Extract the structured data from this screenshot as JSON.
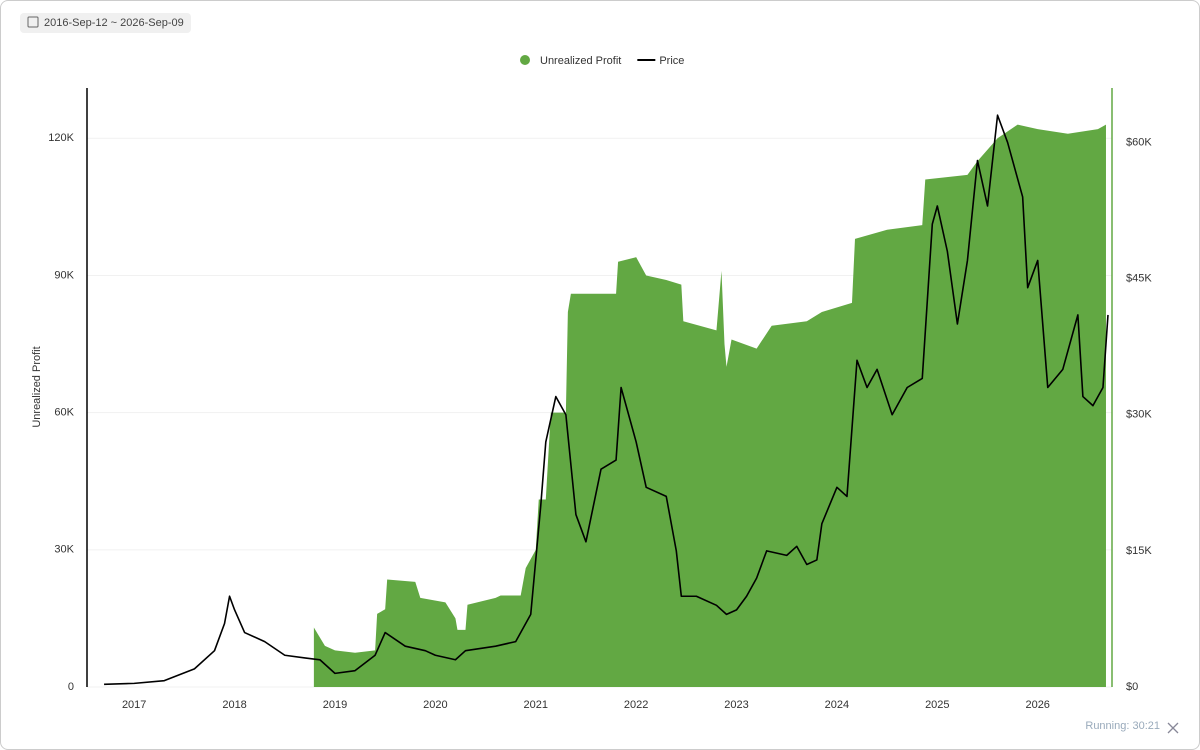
{
  "ui": {
    "date_range": "2016-Sep-12 ~ 2026-Sep-09",
    "status": "Running: 30:21"
  },
  "chart_data": {
    "type": "line",
    "y_label": "Unrealized Profit",
    "legend": "top",
    "grid": true,
    "xlim": [
      2016.53,
      2026.74
    ],
    "xticks": [
      2017,
      2018,
      2019,
      2020,
      2021,
      2022,
      2023,
      2024,
      2025,
      2026
    ],
    "ylim": [
      0,
      131000
    ],
    "yticks": [
      0,
      {
        "value": 30000,
        "label": "30K"
      },
      {
        "value": 60000,
        "label": "60K"
      },
      {
        "value": 90000,
        "label": "90K"
      },
      {
        "value": 120000,
        "label": "120K"
      }
    ],
    "y2lim": [
      0,
      66000
    ],
    "y2ticks": [
      {
        "value": 0,
        "label": "$0"
      },
      {
        "value": 15000,
        "label": "$15K"
      },
      {
        "value": 30000,
        "label": "$30K"
      },
      {
        "value": 45000,
        "label": "$45K"
      },
      {
        "value": 60000,
        "label": "$60K"
      }
    ],
    "series": [
      {
        "name": "Unrealized Profit",
        "type": "area",
        "color": "#62a843",
        "x": [
          2018.79,
          2018.9,
          2019.0,
          2019.2,
          2019.4,
          2019.42,
          2019.5,
          2019.52,
          2019.8,
          2019.85,
          2020.1,
          2020.2,
          2020.22,
          2020.3,
          2020.32,
          2020.6,
          2020.65,
          2020.85,
          2020.9,
          2021.0,
          2021.03,
          2021.1,
          2021.15,
          2021.3,
          2021.32,
          2021.35,
          2021.6,
          2021.8,
          2021.82,
          2022.0,
          2022.1,
          2022.3,
          2022.45,
          2022.47,
          2022.8,
          2022.85,
          2022.88,
          2022.9,
          2022.95,
          2023.2,
          2023.35,
          2023.7,
          2023.85,
          2024.15,
          2024.18,
          2024.5,
          2024.85,
          2024.88,
          2025.3,
          2025.4,
          2025.6,
          2025.8,
          2026.0,
          2026.3,
          2026.6,
          2026.68
        ],
        "values": [
          13000,
          9000,
          8000,
          7500,
          8000,
          16000,
          17000,
          23500,
          23000,
          19500,
          18500,
          15000,
          12500,
          12500,
          18000,
          19500,
          20000,
          20000,
          26000,
          30000,
          41000,
          41000,
          60000,
          60000,
          82000,
          86000,
          86000,
          86000,
          93000,
          94000,
          90000,
          89000,
          88000,
          80000,
          78000,
          91000,
          75000,
          70000,
          76000,
          74000,
          79000,
          80000,
          82000,
          84000,
          98000,
          100000,
          101000,
          111000,
          112000,
          115000,
          120000,
          123000,
          122000,
          121000,
          122000,
          123000
        ]
      },
      {
        "name": "Price",
        "type": "line",
        "axis": "y2",
        "color": "#000000",
        "x": [
          2016.7,
          2017.0,
          2017.3,
          2017.6,
          2017.8,
          2017.9,
          2017.95,
          2018.0,
          2018.1,
          2018.3,
          2018.5,
          2018.7,
          2018.85,
          2019.0,
          2019.2,
          2019.4,
          2019.5,
          2019.7,
          2019.9,
          2020.0,
          2020.2,
          2020.3,
          2020.6,
          2020.8,
          2020.95,
          2021.05,
          2021.1,
          2021.2,
          2021.3,
          2021.4,
          2021.5,
          2021.65,
          2021.8,
          2021.85,
          2022.0,
          2022.1,
          2022.3,
          2022.4,
          2022.45,
          2022.6,
          2022.8,
          2022.9,
          2023.0,
          2023.1,
          2023.2,
          2023.3,
          2023.5,
          2023.6,
          2023.7,
          2023.8,
          2023.85,
          2024.0,
          2024.1,
          2024.2,
          2024.3,
          2024.4,
          2024.55,
          2024.7,
          2024.85,
          2024.95,
          2025.0,
          2025.1,
          2025.2,
          2025.3,
          2025.4,
          2025.5,
          2025.6,
          2025.7,
          2025.85,
          2025.9,
          2026.0,
          2026.1,
          2026.25,
          2026.4,
          2026.45,
          2026.55,
          2026.65,
          2026.7
        ],
        "values": [
          300,
          400,
          700,
          2000,
          4000,
          7000,
          10000,
          8500,
          6000,
          5000,
          3500,
          3200,
          3000,
          1500,
          1800,
          3500,
          6000,
          4500,
          4000,
          3500,
          3000,
          4000,
          4500,
          5000,
          8000,
          20000,
          27000,
          32000,
          30000,
          19000,
          16000,
          24000,
          25000,
          33000,
          27000,
          22000,
          21000,
          15000,
          10000,
          10000,
          9000,
          8000,
          8500,
          10000,
          12000,
          15000,
          14500,
          15500,
          13500,
          14000,
          18000,
          22000,
          21000,
          36000,
          33000,
          35000,
          30000,
          33000,
          34000,
          51000,
          53000,
          48000,
          40000,
          47000,
          58000,
          53000,
          63000,
          60000,
          54000,
          44000,
          47000,
          33000,
          35000,
          41000,
          32000,
          31000,
          33000,
          41000
        ]
      }
    ]
  }
}
